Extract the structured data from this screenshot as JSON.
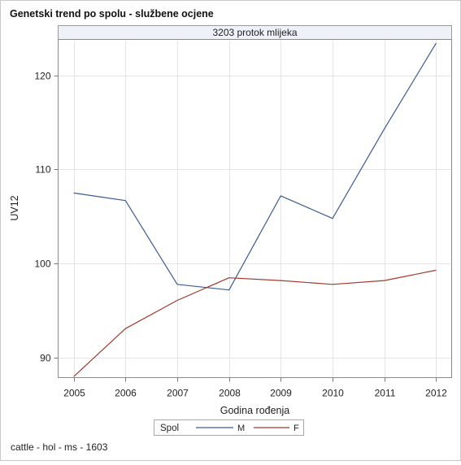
{
  "chart_data": {
    "type": "line",
    "title": "Genetski trend po spolu - službene ocjene",
    "panel_label": "3203 protok mlijeka",
    "xlabel": "Godina rođenja",
    "ylabel": "UV12",
    "x": [
      2005,
      2006,
      2007,
      2008,
      2009,
      2010,
      2011,
      2012
    ],
    "xlim": [
      2004.7,
      2012.3
    ],
    "ylim": [
      87.9,
      123.8
    ],
    "y_ticks": [
      90,
      100,
      110,
      120
    ],
    "grid": true,
    "legend": {
      "title": "Spol",
      "placement": "bottom-center"
    },
    "series": [
      {
        "name": "M",
        "color": "#3e5a94",
        "values": [
          107.5,
          106.7,
          97.8,
          97.2,
          107.2,
          104.8,
          114.3,
          123.4
        ]
      },
      {
        "name": "F",
        "color": "#a3392c",
        "values": [
          88.0,
          93.1,
          96.1,
          98.5,
          98.2,
          97.8,
          98.2,
          99.3
        ]
      }
    ],
    "footnote": "cattle - hol - ms - 1603"
  }
}
